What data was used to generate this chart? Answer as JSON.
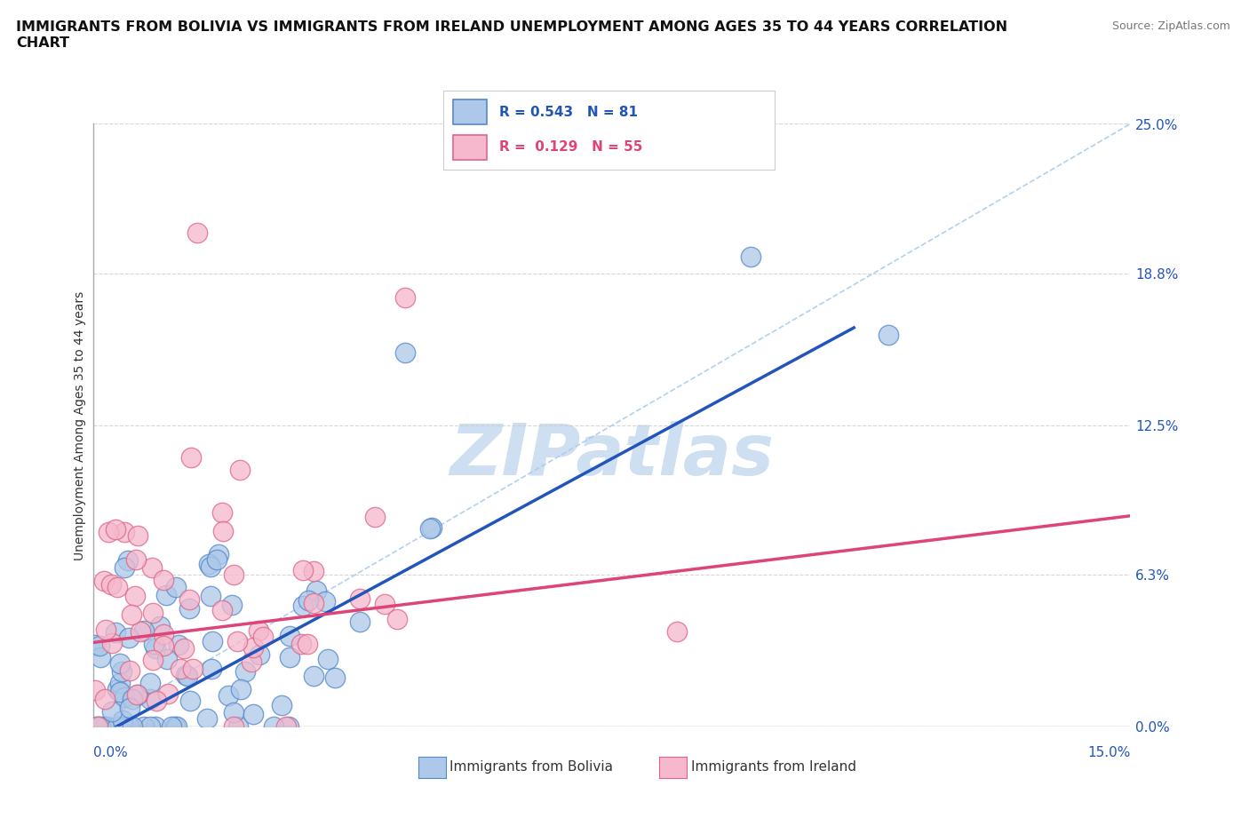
{
  "title": "IMMIGRANTS FROM BOLIVIA VS IMMIGRANTS FROM IRELAND UNEMPLOYMENT AMONG AGES 35 TO 44 YEARS CORRELATION\nCHART",
  "source_text": "Source: ZipAtlas.com",
  "ylabel": "Unemployment Among Ages 35 to 44 years",
  "ytick_values": [
    0.0,
    6.3,
    12.5,
    18.8,
    25.0
  ],
  "ytick_labels": [
    "0.0%",
    "6.3%",
    "12.5%",
    "18.8%",
    "25.0%"
  ],
  "xlim": [
    0.0,
    15.0
  ],
  "ylim": [
    0.0,
    25.0
  ],
  "bolivia_R": 0.543,
  "bolivia_N": 81,
  "ireland_R": 0.129,
  "ireland_N": 55,
  "bolivia_color": "#adc8e8",
  "bolivia_edge_color": "#5588cc",
  "ireland_color": "#f5b8cc",
  "ireland_edge_color": "#dd6688",
  "bolivia_line_color": "#2255bb",
  "ireland_line_color": "#dd4477",
  "diagonal_line_color": "#aaccee",
  "grid_color": "#cccccc",
  "background_color": "#ffffff",
  "watermark_color": "#cddff0",
  "title_fontsize": 11.5,
  "axis_label_fontsize": 10,
  "tick_fontsize": 11
}
